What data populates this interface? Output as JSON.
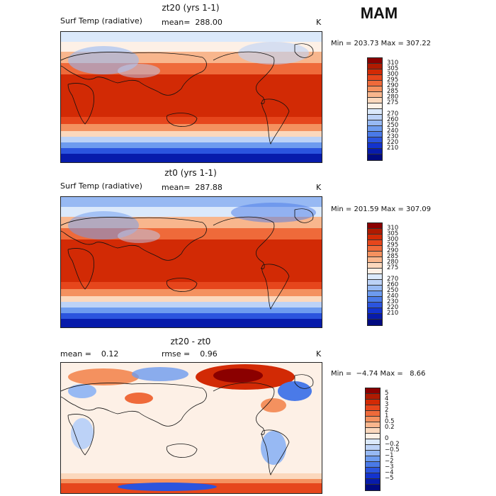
{
  "season": "MAM",
  "panels": [
    {
      "title": "zt20 (yrs 1-1)",
      "var_label": "Surf Temp (radiative)",
      "stat1": "mean=  288.00",
      "stat2": "",
      "unit": "K",
      "minmax": "Min = 203.73 Max = 307.22",
      "colorbar": {
        "colors": [
          "#8b0000",
          "#b01a00",
          "#d22a05",
          "#e6461c",
          "#ef6a3a",
          "#f4915f",
          "#f8b68d",
          "#fbd8bd",
          "#fdf0e6",
          "#dbe9fb",
          "#bcd2f7",
          "#97b9f3",
          "#6d9bef",
          "#4a7ae8",
          "#2b54de",
          "#1333cf",
          "#071bab",
          "#000a80"
        ],
        "labels": [
          "310",
          "305",
          "300",
          "295",
          "290",
          "285",
          "280",
          "275",
          "270",
          "260",
          "250",
          "240",
          "230",
          "220",
          "210"
        ]
      }
    },
    {
      "title": "zt0 (yrs 1-1)",
      "var_label": "Surf Temp (radiative)",
      "stat1": "mean=  287.88",
      "stat2": "",
      "unit": "K",
      "minmax": "Min = 201.59 Max = 307.09",
      "colorbar": {
        "colors": [
          "#8b0000",
          "#b01a00",
          "#d22a05",
          "#e6461c",
          "#ef6a3a",
          "#f4915f",
          "#f8b68d",
          "#fbd8bd",
          "#fdf0e6",
          "#dbe9fb",
          "#bcd2f7",
          "#97b9f3",
          "#6d9bef",
          "#4a7ae8",
          "#2b54de",
          "#1333cf",
          "#071bab",
          "#000a80"
        ],
        "labels": [
          "310",
          "305",
          "300",
          "295",
          "290",
          "285",
          "280",
          "275",
          "270",
          "260",
          "250",
          "240",
          "230",
          "220",
          "210"
        ]
      }
    },
    {
      "title": "zt20 - zt0",
      "var_label": "",
      "stat1": "mean =    0.12",
      "stat2": "rmse =    0.96",
      "unit": "K",
      "minmax": "Min =  −4.74 Max =   8.66",
      "colorbar": {
        "colors": [
          "#8b0000",
          "#b01a00",
          "#d22a05",
          "#e6461c",
          "#ef6a3a",
          "#f4915f",
          "#f8b68d",
          "#fbd8bd",
          "#fdf0e6",
          "#dbe9fb",
          "#bcd2f7",
          "#97b9f3",
          "#6d9bef",
          "#4a7ae8",
          "#2b54de",
          "#1333cf",
          "#071bab",
          "#000a80"
        ],
        "labels": [
          "5",
          "4",
          "3",
          "2",
          "1",
          "0.5",
          "0.2",
          "0",
          "−0.2",
          "−0.5",
          "−1",
          "−2",
          "−3",
          "−4",
          "−5"
        ]
      }
    }
  ]
}
